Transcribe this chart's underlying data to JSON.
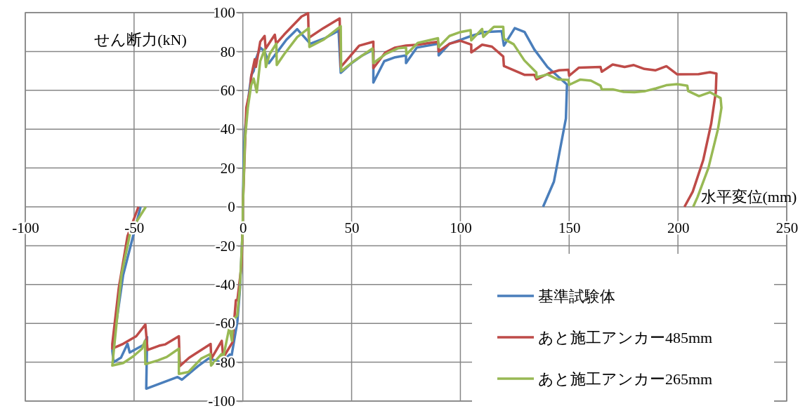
{
  "chart_data": {
    "type": "line",
    "xlabel": "水平変位(mm)",
    "ylabel": "せん断力(kN)",
    "xlim": [
      -100,
      250
    ],
    "xticks": [
      -100,
      -50,
      0,
      50,
      100,
      150,
      200,
      250
    ],
    "ylim": [
      -100,
      100
    ],
    "yticks": [
      -100,
      -80,
      -60,
      -40,
      -20,
      0,
      20,
      40,
      60,
      80,
      100
    ],
    "grid": true,
    "legend": "bottom right",
    "marker": "none",
    "line_style": "solid",
    "series": [
      {
        "name": "基準試験体",
        "color": "#4a7ebb",
        "x": [
          -47,
          -55,
          -60,
          -59.4,
          -56,
          -53,
          -52,
          -45.6,
          -44,
          -44.4,
          -30,
          -28,
          -20.6,
          -15.7,
          -9.8,
          -6,
          -5.5,
          -2.5,
          -1.3,
          0,
          0,
          0.5,
          1,
          2,
          3,
          4,
          5,
          6,
          8,
          10,
          12,
          16,
          20,
          25,
          31,
          38,
          44,
          45,
          50,
          55,
          60,
          60,
          65,
          70,
          75,
          75,
          80,
          90,
          90,
          95,
          100,
          105,
          111,
          119,
          120,
          125,
          129.5,
          134,
          140,
          149,
          148.5,
          143,
          138
        ],
        "values": [
          0,
          -35,
          -74,
          -80,
          -77.6,
          -70.5,
          -75,
          -71,
          -67,
          -93.6,
          -87.6,
          -89,
          -82,
          -78,
          -80,
          -76,
          -78.8,
          -59,
          -42,
          -10,
          0,
          30,
          40,
          50,
          60,
          68,
          70,
          76,
          82,
          80,
          74,
          80,
          86,
          91.5,
          84,
          87,
          90.7,
          69,
          74,
          78,
          81,
          64,
          75,
          77,
          78,
          74,
          82,
          84,
          78,
          84,
          86,
          88,
          90,
          90.4,
          83,
          92,
          90,
          81,
          72,
          63,
          45.5,
          13,
          0
        ]
      },
      {
        "name": "あと施工アンカー485mm",
        "color": "#be4b48",
        "x": [
          -48,
          -53,
          -57,
          -60,
          -60,
          -55,
          -49,
          -44.8,
          -43.8,
          -38.5,
          -35.6,
          -29.4,
          -29,
          -24.7,
          -14.8,
          -14.5,
          -9.7,
          -9,
          -4.8,
          -3.2,
          -2.5,
          -0.6,
          0,
          0,
          1.6,
          3.4,
          3.8,
          5.5,
          6,
          8,
          10,
          10.5,
          14.7,
          15.3,
          19,
          27,
          30,
          30.3,
          37,
          44.5,
          45,
          53.5,
          60,
          60,
          65.5,
          70,
          75,
          80.4,
          89.7,
          90,
          95,
          100,
          105,
          105,
          110,
          114.5,
          119.7,
          120,
          129.4,
          134,
          135,
          140.5,
          145.4,
          149.7,
          150,
          154.5,
          164.4,
          165,
          170,
          175.5,
          179.7,
          184.6,
          189.6,
          194.7,
          199.7,
          209.5,
          214.7,
          217.7,
          217.4,
          215.3,
          211.6,
          206.8,
          203
        ],
        "values": [
          0,
          -15,
          -41.6,
          -70.6,
          -73,
          -70.5,
          -66.6,
          -60.6,
          -73.7,
          -71.5,
          -70.8,
          -66.6,
          -82,
          -77.7,
          -70.6,
          -78.2,
          -69,
          -77.6,
          -69.8,
          -48,
          -48,
          -30,
          -8,
          0,
          51,
          60.5,
          67,
          76,
          72,
          85,
          88,
          81.5,
          88.6,
          84,
          88.7,
          98,
          99.7,
          87,
          92,
          97,
          72,
          83,
          85,
          71.4,
          79.5,
          82,
          83,
          83.5,
          85,
          80,
          84,
          85.5,
          83.5,
          79.5,
          83.5,
          82.5,
          77.4,
          72.5,
          68,
          68,
          65.6,
          68.7,
          70.3,
          70.6,
          67.5,
          71.7,
          72,
          69.6,
          73.3,
          72,
          73,
          71,
          70.3,
          72.4,
          68.2,
          68.3,
          69.3,
          68.6,
          59,
          42.9,
          24,
          7.8,
          0
        ]
      },
      {
        "name": "あと施工アンカー265mm",
        "color": "#98b954",
        "x": [
          -44.6,
          -51.6,
          -55.8,
          -60,
          -55,
          -50.4,
          -46.3,
          -45,
          -44.8,
          -39,
          -35,
          -29.4,
          -29.4,
          -25,
          -19,
          -15,
          -14.6,
          -9.8,
          -9.5,
          -6.2,
          -5,
          -4.5,
          -2.6,
          -1.4,
          0,
          0,
          1,
          2.3,
          3.8,
          5,
          6.4,
          8,
          10,
          10.6,
          12.3,
          15.4,
          15.6,
          19,
          25,
          30.3,
          30.6,
          37,
          45,
          45.2,
          51,
          59.6,
          60,
          65.5,
          71.5,
          75,
          75.2,
          80.4,
          89.7,
          90,
          95,
          100,
          104.7,
          105,
          110,
          110.5,
          115.4,
          119.7,
          120,
          124.5,
          129.4,
          134.9,
          135,
          140,
          144.8,
          149.7,
          150,
          155,
          160,
          164.4,
          165,
          170,
          175,
          180,
          185,
          190,
          194.6,
          199.7,
          204.3,
          204.7,
          209.7,
          214.7,
          219.6,
          220,
          218.4,
          214,
          209,
          207
        ],
        "values": [
          0,
          -12.5,
          -35,
          -81.7,
          -80.4,
          -77,
          -73,
          -69,
          -81,
          -79,
          -77.3,
          -73,
          -86,
          -85,
          -78,
          -75.8,
          -81.7,
          -75.8,
          -80.2,
          -62,
          -69,
          -58,
          -56,
          -42,
          -10,
          0,
          35,
          51,
          62.5,
          66,
          59,
          75,
          81,
          72,
          78.6,
          84,
          73,
          78.6,
          87.4,
          92,
          82.3,
          86,
          93,
          69.8,
          75,
          81.5,
          74,
          78.6,
          81.7,
          82,
          78.5,
          84.4,
          86.8,
          82.3,
          88,
          90,
          91,
          85.7,
          91.6,
          87.5,
          92.7,
          92.7,
          86.5,
          83.7,
          75.4,
          69.2,
          66.7,
          68.2,
          65.6,
          65.3,
          62.8,
          65.5,
          65,
          62.4,
          60.5,
          60.5,
          59.2,
          59,
          59.6,
          61,
          62.6,
          63.2,
          62.4,
          59.6,
          57,
          59,
          56,
          51,
          40,
          20,
          5,
          0
        ]
      }
    ]
  }
}
